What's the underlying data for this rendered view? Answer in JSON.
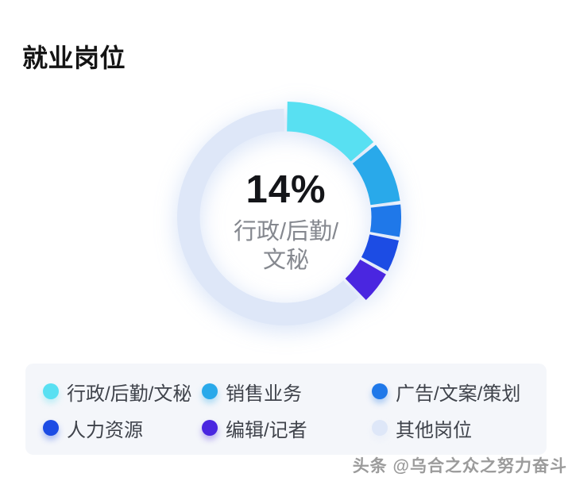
{
  "page": {
    "title": "就业岗位"
  },
  "chart_data": {
    "type": "pie",
    "subtype": "donut",
    "title": "就业岗位",
    "unit": "%",
    "legend_position": "bottom",
    "start_angle_deg": 0,
    "direction": "clockwise",
    "center_label": {
      "value": "14%",
      "full_name": "行政/后勤/文秘",
      "lines": [
        "行政/后勤/",
        "文秘"
      ]
    },
    "series": [
      {
        "name": "行政/后勤/文秘",
        "value": 14,
        "color": "#58E0F2",
        "emphasized": true
      },
      {
        "name": "销售业务",
        "value": 9,
        "color": "#29A9EA"
      },
      {
        "name": "广告/文案/策划",
        "value": 5,
        "color": "#1F78E9"
      },
      {
        "name": "人力资源",
        "value": 5,
        "color": "#1C4CE4"
      },
      {
        "name": "编辑/记者",
        "value": 5,
        "color": "#4A26E0"
      },
      {
        "name": "其他岗位",
        "value": 62,
        "color": "#DEE7F8",
        "muted": true
      }
    ]
  },
  "watermark": "头条 @乌合之众之努力奋斗"
}
